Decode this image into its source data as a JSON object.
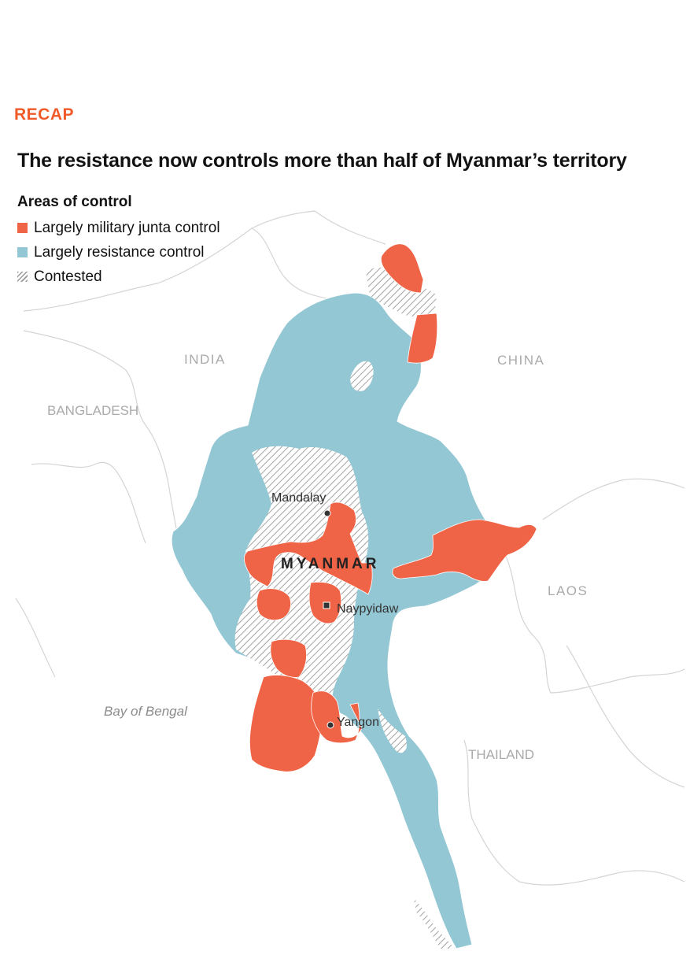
{
  "kicker": "RECAP",
  "headline": "The resistance now controls more than half of Myanmar’s territory",
  "legend": {
    "title": "Areas of control",
    "items": [
      {
        "label": "Largely military junta control",
        "color": "#ef6446"
      },
      {
        "label": "Largely resistance control",
        "color": "#93c7d4"
      },
      {
        "label": "Contested",
        "color": "#9a9a9a"
      }
    ]
  },
  "map": {
    "countries": {
      "india": "INDIA",
      "china": "CHINA",
      "bangladesh": "BANGLADESH",
      "laos": "LAOS",
      "thailand": "THAILAND",
      "myanmar": "MYANMAR"
    },
    "sea": "Bay of Bengal",
    "cities": {
      "mandalay": "Mandalay",
      "naypyidaw": "Naypyidaw",
      "yangon": "Yangon"
    },
    "colors": {
      "junta": "#ef6446",
      "resistance": "#93c7d4",
      "contested_hatch": "#9a9a9a",
      "border": "#d2d2d2"
    }
  }
}
